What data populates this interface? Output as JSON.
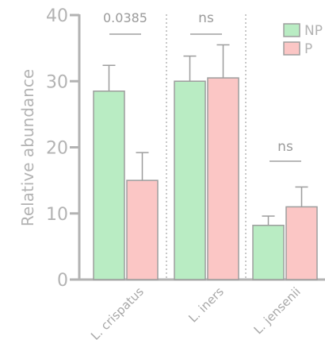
{
  "chart_data": {
    "type": "bar",
    "title": "",
    "xlabel": "",
    "ylabel": "Relative abundance",
    "ylim": [
      0,
      40
    ],
    "yticks": [
      "0",
      "10",
      "20",
      "30",
      "40"
    ],
    "categories": [
      "L. crispatus",
      "L. iners",
      "L. jensenii"
    ],
    "series": [
      {
        "name": "NP",
        "color": "#b9ecc3",
        "stroke": "#9d9d9d",
        "values": [
          28.5,
          30.0,
          8.2
        ],
        "errors": [
          3.9,
          3.8,
          1.4
        ]
      },
      {
        "name": "P",
        "color": "#fbc6c5",
        "stroke": "#9d9d9d",
        "values": [
          15.0,
          30.5,
          11.0
        ],
        "errors": [
          4.2,
          5.0,
          3.0
        ]
      }
    ],
    "annotations": [
      "0.0385",
      "ns",
      "ns"
    ],
    "grid": false,
    "legend": "top-right",
    "axis_color": "#b3b3b3",
    "separator": "dotted"
  }
}
